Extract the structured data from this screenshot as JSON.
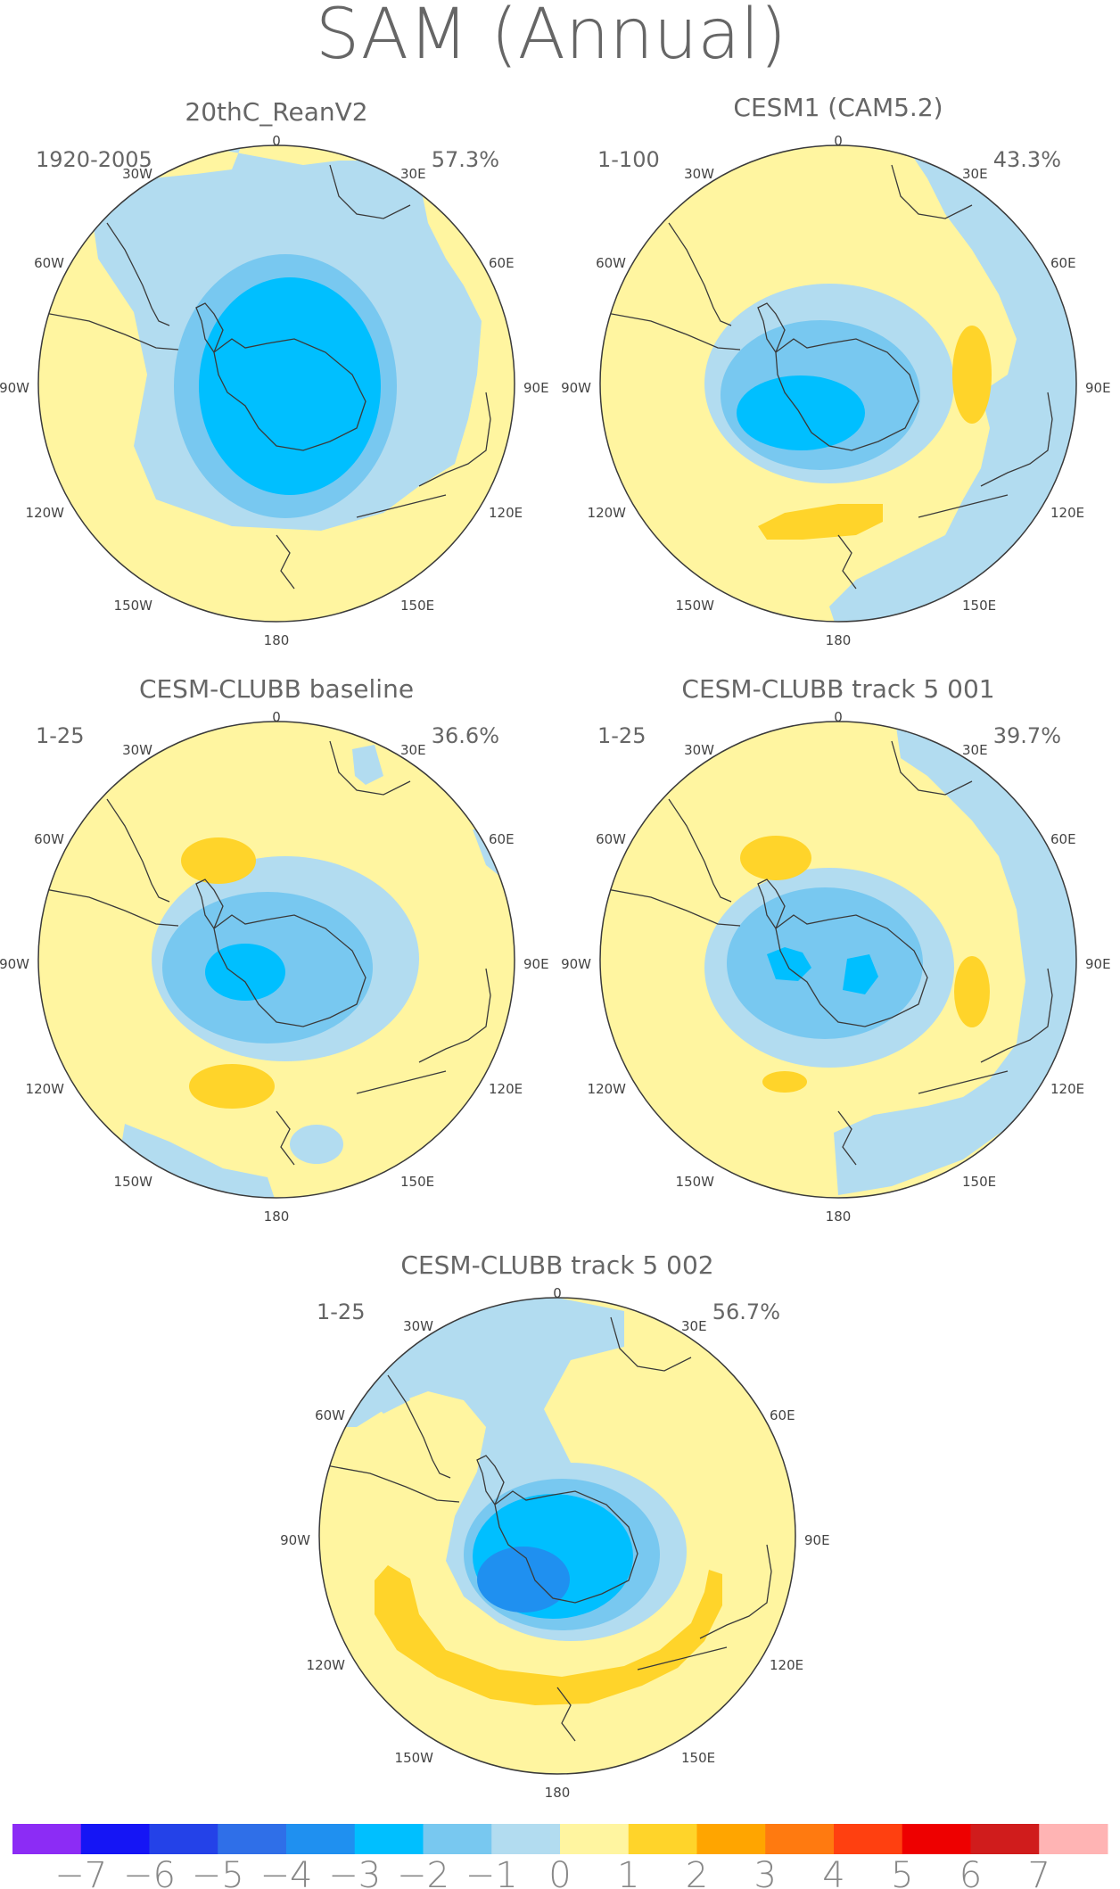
{
  "title": "SAM (Annual)",
  "longitude_labels": [
    "0",
    "30E",
    "60E",
    "90E",
    "120E",
    "150E",
    "180",
    "150W",
    "120W",
    "90W",
    "60W",
    "30W"
  ],
  "panels": [
    {
      "title": "20thC_ReanV2",
      "period": "1920-2005",
      "variance": "57.3%"
    },
    {
      "title": "CESM1 (CAM5.2)",
      "period": "1-100",
      "variance": "43.3%"
    },
    {
      "title": "CESM-CLUBB baseline",
      "period": "1-25",
      "variance": "36.6%"
    },
    {
      "title": "CESM-CLUBB track 5 001",
      "period": "1-25",
      "variance": "39.7%"
    },
    {
      "title": "CESM-CLUBB track 5 002",
      "period": "1-25",
      "variance": "56.7%"
    }
  ],
  "colorbar": {
    "labels": [
      "−7",
      "−6",
      "−5",
      "−4",
      "−3",
      "−2",
      "−1",
      "0",
      "1",
      "2",
      "3",
      "4",
      "5",
      "6",
      "7"
    ],
    "colors": [
      "#8c2cf5",
      "#1515f5",
      "#2442e8",
      "#2f6fe8",
      "#1f90f0",
      "#00bfff",
      "#78c8f0",
      "#b2dcf0",
      "#fff5a0",
      "#ffd42a",
      "#ffa500",
      "#ff7a10",
      "#ff4010",
      "#ee0000",
      "#d01c1c",
      "#ffb4b4"
    ]
  },
  "colors": {
    "land_outline": "#3a3a3a",
    "neutral": "#fff5a0",
    "negative_light": "#b2dcf0",
    "negative_mid": "#78c8f0",
    "negative_strong": "#00bfff",
    "negative_stronger": "#1f90f0",
    "positive_light": "#ffd42a"
  }
}
